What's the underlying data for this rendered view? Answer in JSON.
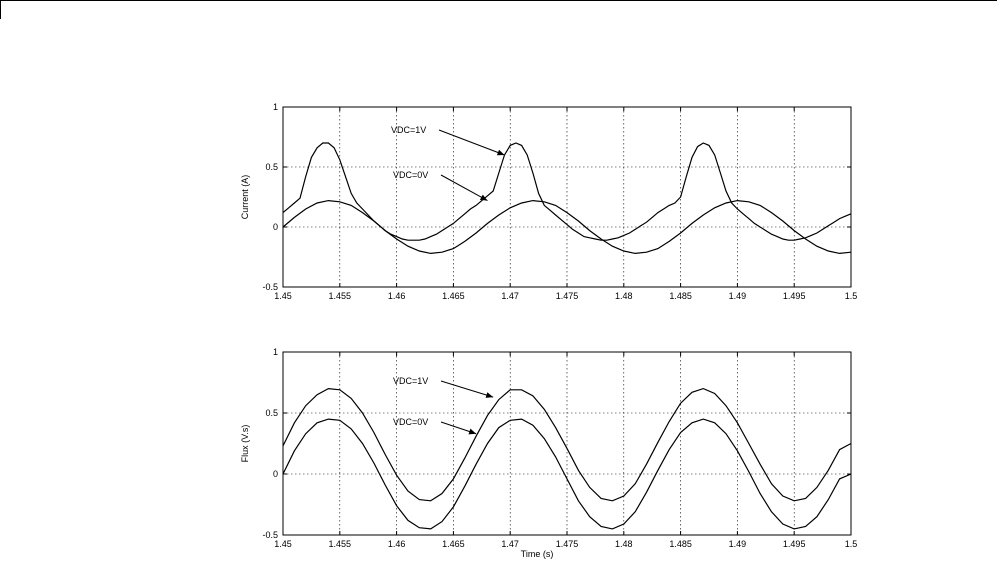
{
  "chart_data": [
    {
      "type": "line",
      "title": "",
      "xlabel": "",
      "ylabel": "Current (A)",
      "xlim": [
        1.45,
        1.5
      ],
      "ylim": [
        -0.5,
        1
      ],
      "grid": true,
      "x_ticks": [
        "1.45",
        "1.455",
        "1.46",
        "1.465",
        "1.47",
        "1.475",
        "1.48",
        "1.485",
        "1.49",
        "1.495",
        "1.5"
      ],
      "y_ticks": [
        "-0.5",
        "0",
        "0.5",
        "1"
      ],
      "annotations": [
        {
          "text": "VDC=1V",
          "arrow_to": [
            1.4695,
            0.6
          ]
        },
        {
          "text": "VDC=0V",
          "arrow_to": [
            1.468,
            0.22
          ]
        }
      ],
      "series": [
        {
          "x": [
            1.45,
            1.4505,
            1.451,
            1.4515,
            1.452,
            1.4525,
            1.453,
            1.4535,
            1.454,
            1.4545,
            1.455,
            1.4555,
            1.456,
            1.4565,
            1.457,
            1.4575,
            1.458,
            1.4585,
            1.459,
            1.4595,
            1.46,
            1.4605,
            1.461,
            1.4615,
            1.462,
            1.4625,
            1.463,
            1.4635,
            1.464,
            1.4645,
            1.465,
            1.4655,
            1.466,
            1.4665,
            1.467,
            1.4675,
            1.468,
            1.4685,
            1.469,
            1.4695,
            1.47,
            1.4705,
            1.471,
            1.4715,
            1.472,
            1.4725,
            1.473,
            1.4735,
            1.474,
            1.4745,
            1.475,
            1.4755,
            1.476,
            1.4765,
            1.477,
            1.4775,
            1.478,
            1.4785,
            1.479,
            1.4795,
            1.48,
            1.4805,
            1.481,
            1.4815,
            1.482,
            1.4825,
            1.483,
            1.4835,
            1.484,
            1.4845,
            1.485,
            1.4855,
            1.486,
            1.4865,
            1.487,
            1.4875,
            1.488,
            1.4885,
            1.489,
            1.4895,
            1.49,
            1.4905,
            1.491,
            1.4915,
            1.492,
            1.4925,
            1.493,
            1.4935,
            1.494,
            1.4945,
            1.495,
            1.4955,
            1.496,
            1.4965,
            1.497,
            1.4975,
            1.498,
            1.4985,
            1.499,
            1.4995,
            1.5
          ],
          "values": [
            0.12,
            0.16,
            0.2,
            0.24,
            0.42,
            0.58,
            0.66,
            0.7,
            0.7,
            0.66,
            0.56,
            0.42,
            0.28,
            0.2,
            0.15,
            0.1,
            0.05,
            0.01,
            -0.03,
            -0.06,
            -0.08,
            -0.1,
            -0.11,
            -0.11,
            -0.11,
            -0.1,
            -0.08,
            -0.06,
            -0.03,
            0.0,
            0.03,
            0.07,
            0.11,
            0.15,
            0.18,
            0.22,
            0.26,
            0.3,
            0.45,
            0.6,
            0.68,
            0.7,
            0.68,
            0.6,
            0.45,
            0.28,
            0.18,
            0.14,
            0.1,
            0.06,
            0.02,
            -0.02,
            -0.05,
            -0.08,
            -0.09,
            -0.1,
            -0.11,
            -0.11,
            -0.1,
            -0.09,
            -0.07,
            -0.05,
            -0.02,
            0.01,
            0.04,
            0.08,
            0.12,
            0.15,
            0.18,
            0.2,
            0.25,
            0.42,
            0.58,
            0.67,
            0.7,
            0.68,
            0.6,
            0.45,
            0.3,
            0.2,
            0.15,
            0.11,
            0.07,
            0.03,
            0.0,
            -0.03,
            -0.06,
            -0.08,
            -0.1,
            -0.11,
            -0.11,
            -0.1,
            -0.09,
            -0.07,
            -0.05,
            -0.02,
            0.01,
            0.04,
            0.07,
            0.09,
            0.11
          ]
        },
        {
          "x": [
            1.45,
            1.451,
            1.452,
            1.453,
            1.454,
            1.455,
            1.456,
            1.457,
            1.458,
            1.459,
            1.46,
            1.461,
            1.462,
            1.463,
            1.464,
            1.465,
            1.466,
            1.467,
            1.468,
            1.469,
            1.47,
            1.471,
            1.472,
            1.473,
            1.474,
            1.475,
            1.476,
            1.477,
            1.478,
            1.479,
            1.48,
            1.481,
            1.482,
            1.483,
            1.484,
            1.485,
            1.486,
            1.487,
            1.488,
            1.489,
            1.49,
            1.491,
            1.492,
            1.493,
            1.494,
            1.495,
            1.496,
            1.497,
            1.498,
            1.499,
            1.5
          ],
          "values": [
            0.0,
            0.08,
            0.15,
            0.2,
            0.22,
            0.21,
            0.18,
            0.12,
            0.05,
            -0.03,
            -0.1,
            -0.16,
            -0.2,
            -0.22,
            -0.21,
            -0.18,
            -0.12,
            -0.05,
            0.03,
            0.1,
            0.16,
            0.2,
            0.22,
            0.21,
            0.18,
            0.12,
            0.05,
            -0.03,
            -0.1,
            -0.16,
            -0.2,
            -0.22,
            -0.21,
            -0.18,
            -0.12,
            -0.05,
            0.03,
            0.1,
            0.16,
            0.2,
            0.22,
            0.21,
            0.18,
            0.12,
            0.05,
            -0.03,
            -0.1,
            -0.16,
            -0.2,
            -0.22,
            -0.21
          ]
        }
      ]
    },
    {
      "type": "line",
      "title": "",
      "xlabel": "Time (s)",
      "ylabel": "Flux (V.s)",
      "xlim": [
        1.45,
        1.5
      ],
      "ylim": [
        -0.5,
        1
      ],
      "grid": true,
      "x_ticks": [
        "1.45",
        "1.455",
        "1.46",
        "1.465",
        "1.47",
        "1.475",
        "1.48",
        "1.485",
        "1.49",
        "1.495",
        "1.5"
      ],
      "y_ticks": [
        "-0.5",
        "0",
        "0.5",
        "1"
      ],
      "annotations": [
        {
          "text": "VDC=1V",
          "arrow_to": [
            1.4685,
            0.63
          ]
        },
        {
          "text": "VDC=0V",
          "arrow_to": [
            1.467,
            0.33
          ]
        }
      ],
      "series": [
        {
          "x": [
            1.45,
            1.451,
            1.452,
            1.453,
            1.454,
            1.455,
            1.456,
            1.457,
            1.458,
            1.459,
            1.46,
            1.461,
            1.462,
            1.463,
            1.464,
            1.465,
            1.466,
            1.467,
            1.468,
            1.469,
            1.47,
            1.471,
            1.472,
            1.473,
            1.474,
            1.475,
            1.476,
            1.477,
            1.478,
            1.479,
            1.48,
            1.481,
            1.482,
            1.483,
            1.484,
            1.485,
            1.486,
            1.487,
            1.488,
            1.489,
            1.49,
            1.491,
            1.492,
            1.493,
            1.494,
            1.495,
            1.496,
            1.497,
            1.498,
            1.499,
            1.5
          ],
          "values": [
            0.23,
            0.42,
            0.56,
            0.65,
            0.7,
            0.69,
            0.62,
            0.5,
            0.34,
            0.16,
            -0.01,
            -0.14,
            -0.21,
            -0.22,
            -0.16,
            -0.04,
            0.13,
            0.31,
            0.48,
            0.61,
            0.69,
            0.69,
            0.64,
            0.53,
            0.38,
            0.21,
            0.03,
            -0.11,
            -0.2,
            -0.22,
            -0.18,
            -0.08,
            0.08,
            0.26,
            0.43,
            0.58,
            0.67,
            0.7,
            0.66,
            0.56,
            0.42,
            0.25,
            0.08,
            -0.08,
            -0.18,
            -0.22,
            -0.2,
            -0.11,
            0.03,
            0.2,
            0.25
          ]
        },
        {
          "x": [
            1.45,
            1.451,
            1.452,
            1.453,
            1.454,
            1.455,
            1.456,
            1.457,
            1.458,
            1.459,
            1.46,
            1.461,
            1.462,
            1.463,
            1.464,
            1.465,
            1.466,
            1.467,
            1.468,
            1.469,
            1.47,
            1.471,
            1.472,
            1.473,
            1.474,
            1.475,
            1.476,
            1.477,
            1.478,
            1.479,
            1.48,
            1.481,
            1.482,
            1.483,
            1.484,
            1.485,
            1.486,
            1.487,
            1.488,
            1.489,
            1.49,
            1.491,
            1.492,
            1.493,
            1.494,
            1.495,
            1.496,
            1.497,
            1.498,
            1.499,
            1.5
          ],
          "values": [
            0.0,
            0.19,
            0.33,
            0.42,
            0.45,
            0.44,
            0.37,
            0.25,
            0.09,
            -0.09,
            -0.26,
            -0.38,
            -0.44,
            -0.45,
            -0.39,
            -0.27,
            -0.1,
            0.08,
            0.25,
            0.38,
            0.44,
            0.45,
            0.4,
            0.29,
            0.14,
            -0.04,
            -0.22,
            -0.35,
            -0.43,
            -0.45,
            -0.41,
            -0.31,
            -0.15,
            0.03,
            0.2,
            0.34,
            0.42,
            0.45,
            0.42,
            0.33,
            0.19,
            0.02,
            -0.16,
            -0.31,
            -0.41,
            -0.45,
            -0.43,
            -0.35,
            -0.21,
            -0.04,
            0.0
          ]
        }
      ]
    }
  ]
}
